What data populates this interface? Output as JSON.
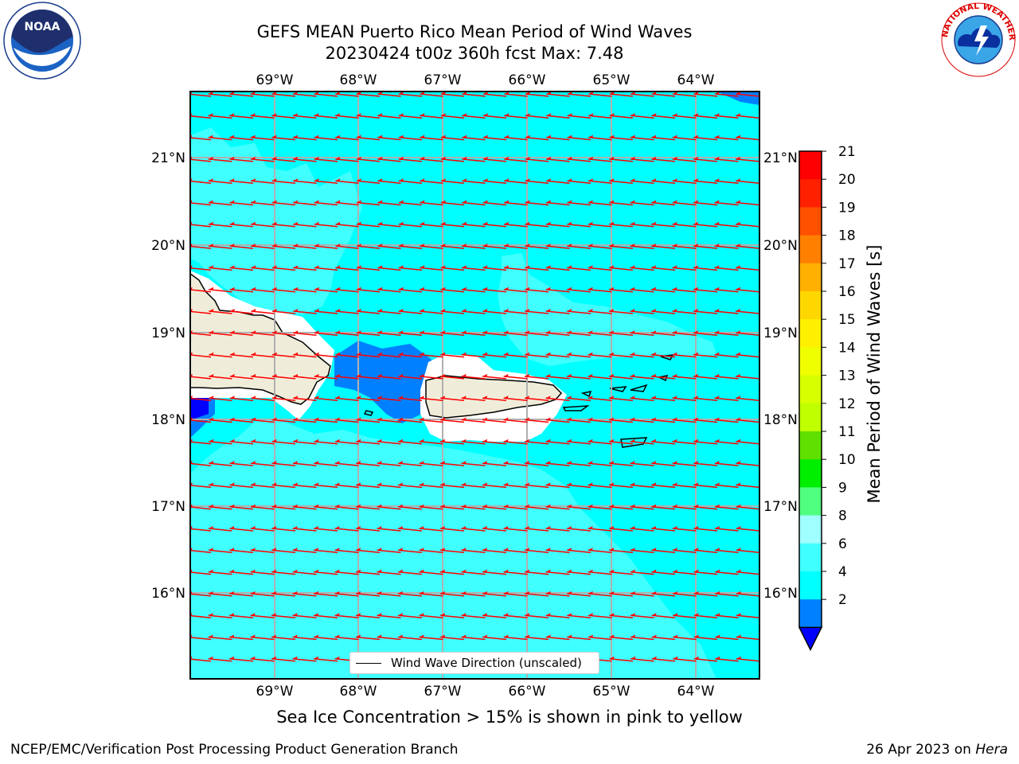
{
  "title": {
    "line1": "GEFS MEAN Puerto Rico Mean Period of Wind Waves",
    "line2": "20230424 t00z 360h fcst   Max: 7.48"
  },
  "logos": {
    "left": {
      "icon": "noaa-logo",
      "text": "NOAA",
      "ring_text": "NATIONAL OCEANIC AND ATMOSPHERIC ADMINISTRATION · U.S. DEPARTMENT OF COMMERCE"
    },
    "right": {
      "icon": "nws-logo",
      "ring_text": "NATIONAL WEATHER SERVICE"
    }
  },
  "map": {
    "lon_labels": [
      "69°W",
      "68°W",
      "67°W",
      "66°W",
      "65°W",
      "64°W"
    ],
    "lat_labels": [
      "21°N",
      "20°N",
      "19°N",
      "18°N",
      "17°N",
      "16°N"
    ],
    "legend_label": "Wind Wave Direction (unscaled)",
    "colors": {
      "land": "#efedd9",
      "water_4_6": "#00ffff",
      "water_6_8": "#40ffff",
      "water_2_4": "#0080ff",
      "water_lt2": "#0000ff",
      "arrow": "#ff0000",
      "grid": "#b0b0b0"
    }
  },
  "colorbar": {
    "title": "Mean Period of Wind Waves [s]",
    "ticks": [
      "21",
      "20",
      "19",
      "18",
      "17",
      "16",
      "15",
      "14",
      "13",
      "12",
      "11",
      "10",
      "9",
      "8",
      "6",
      "4",
      "2"
    ],
    "colors": [
      "#ff0000",
      "#ff2000",
      "#ff5000",
      "#ff8000",
      "#ffb000",
      "#ffd700",
      "#fff000",
      "#f0ff00",
      "#d8ff00",
      "#c0ff00",
      "#60e000",
      "#00ee00",
      "#50ff80",
      "#a0ffff",
      "#40ffff",
      "#00ffff",
      "#0080ff"
    ],
    "extend_color": "#0000ff"
  },
  "notes": {
    "sea_ice": "Sea Ice Concentration > 15% is shown in pink to yellow"
  },
  "footer": {
    "left": "NCEP/EMC/Verification Post Processing Product Generation Branch",
    "right_prefix": "26 Apr 2023 on ",
    "right_host": "Hera"
  }
}
